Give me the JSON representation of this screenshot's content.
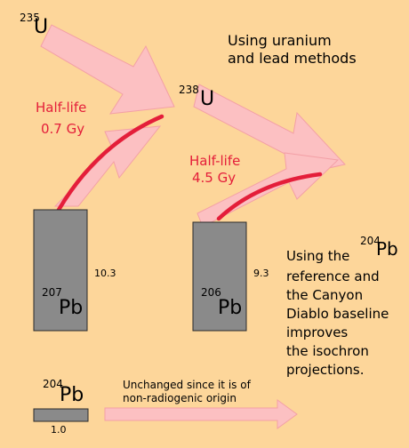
{
  "title_lines": [
    "Using uranium",
    "and lead methods"
  ],
  "u235": {
    "mass": "235",
    "symbol": "U",
    "half_life_label": "Half-life",
    "half_life_value": "0.7 Gy"
  },
  "u238": {
    "mass": "238",
    "symbol": "U",
    "half_life_label": "Half-life",
    "half_life_value": "4.5 Gy"
  },
  "pb207": {
    "mass": "207",
    "symbol": "Pb",
    "value": "10.3"
  },
  "pb206": {
    "mass": "206",
    "symbol": "Pb",
    "value": "9.3"
  },
  "pb204": {
    "mass": "204",
    "symbol": "Pb",
    "value": "1.0",
    "note_lines": [
      "Unchanged since it is of",
      "non-radiogenic origin"
    ]
  },
  "side_note": {
    "line1_prefix": "Using the",
    "ref_mass": "204",
    "ref_symbol": "Pb",
    "lines": [
      "reference and",
      "the Canyon",
      "Diablo baseline",
      "improves",
      "the isochron",
      "projections."
    ]
  },
  "colors": {
    "background": "#fdd69a",
    "arrow_fill": "#fcc0c2",
    "arrow_stroke": "#f3a0a6",
    "curve": "#e41e3a",
    "bar_fill": "#8a8a8a",
    "bar_stroke": "#2a2a2a"
  }
}
